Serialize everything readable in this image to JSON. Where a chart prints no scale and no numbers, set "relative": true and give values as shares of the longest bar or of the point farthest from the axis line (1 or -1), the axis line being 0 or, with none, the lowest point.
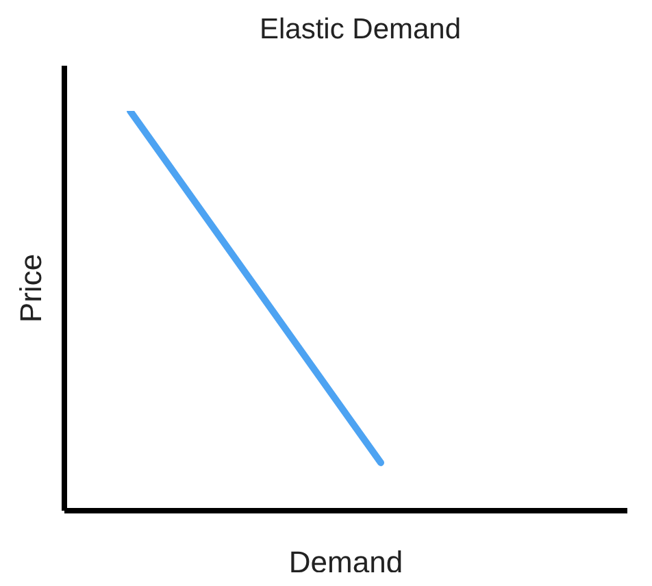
{
  "chart_data": {
    "type": "line",
    "title": "Elastic Demand",
    "xlabel": "Demand",
    "ylabel": "Price",
    "relative": true,
    "categories": [
      null,
      null
    ],
    "series": [
      {
        "color": "#4da3f2",
        "values": [
          1,
          0.12
        ]
      }
    ]
  }
}
